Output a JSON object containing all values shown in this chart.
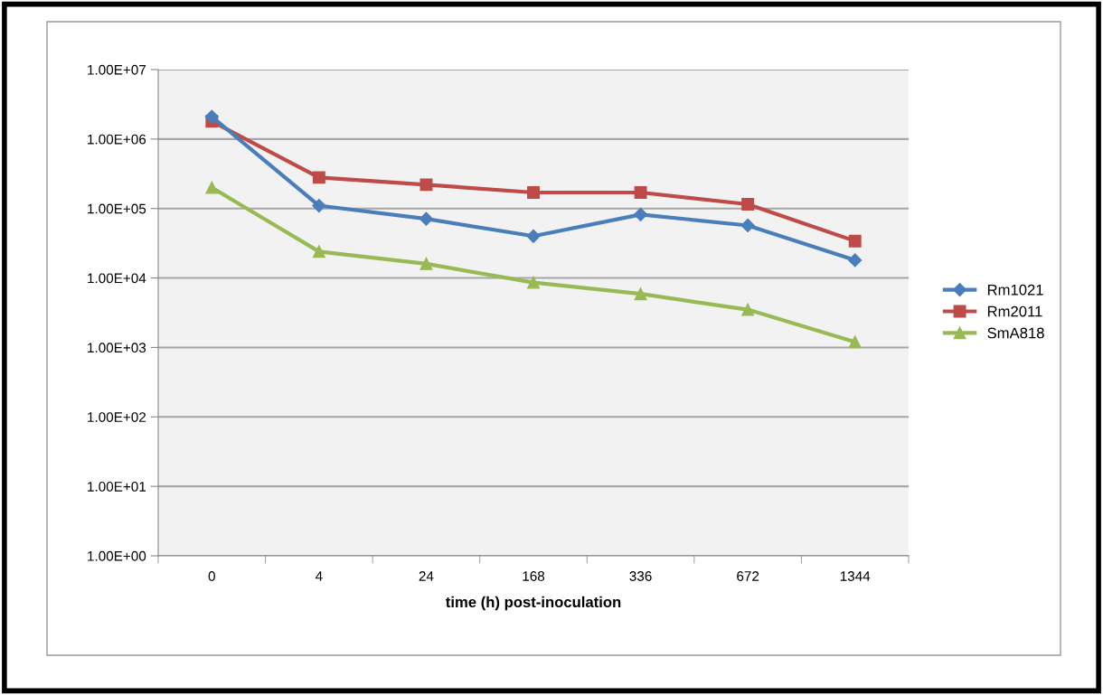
{
  "chart_data": {
    "type": "line",
    "xlabel": "time (h) post-inoculation",
    "categories": [
      "0",
      "4",
      "24",
      "168",
      "336",
      "672",
      "1344"
    ],
    "series": [
      {
        "name": "Rm1021",
        "color": "#4a7ebb",
        "marker": "diamond",
        "values": [
          2100000,
          110000,
          71000,
          40000,
          82000,
          57000,
          18000
        ]
      },
      {
        "name": "Rm2011",
        "color": "#be4b48",
        "marker": "square",
        "values": [
          1800000,
          280000,
          220000,
          170000,
          170000,
          115000,
          34000
        ]
      },
      {
        "name": "SmA818",
        "color": "#98b954",
        "marker": "triangle",
        "values": [
          200000,
          24000,
          16000,
          8600,
          5900,
          3500,
          1200
        ]
      }
    ],
    "log": "y",
    "ylim": [
      1,
      10000000
    ],
    "yticks": [
      {
        "value": 1,
        "label": "1.00E+00"
      },
      {
        "value": 10,
        "label": "1.00E+01"
      },
      {
        "value": 100,
        "label": "1.00E+02"
      },
      {
        "value": 1000,
        "label": "1.00E+03"
      },
      {
        "value": 10000,
        "label": "1.00E+04"
      },
      {
        "value": 100000,
        "label": "1.00E+05"
      },
      {
        "value": 1000000,
        "label": "1.00E+06"
      },
      {
        "value": 10000000,
        "label": "1.00E+07"
      }
    ],
    "grid": "y",
    "legend": "right",
    "line_style": "solid"
  }
}
